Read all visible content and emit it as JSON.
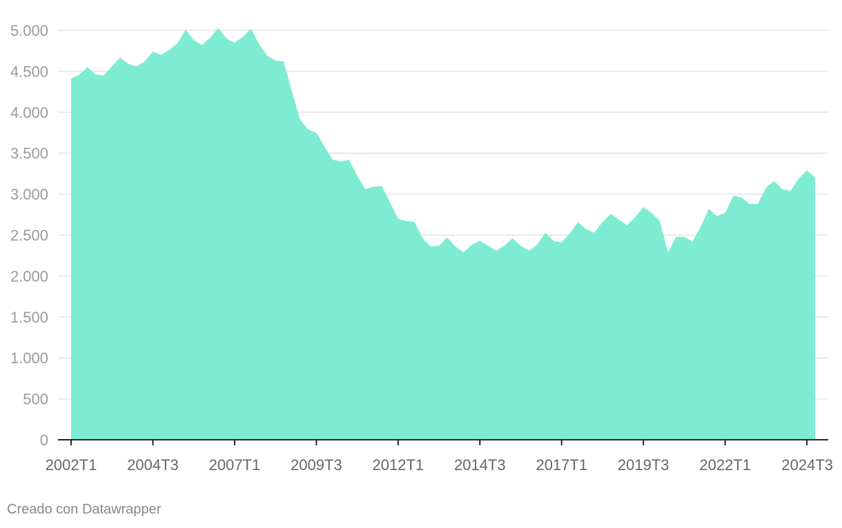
{
  "colors": {
    "area": "#7eecd3",
    "grid": "#e3e3e3",
    "baseline": "#222222"
  },
  "chart_data": {
    "type": "area",
    "title": "",
    "xlabel": "",
    "ylabel": "",
    "ylim": [
      0,
      5000
    ],
    "grid": true,
    "y_ticks": [
      0,
      500,
      1000,
      1500,
      2000,
      2500,
      3000,
      3500,
      4000,
      4500,
      5000
    ],
    "y_tick_labels": [
      "0",
      "500",
      "1.000",
      "1.500",
      "2.000",
      "2.500",
      "3.000",
      "3.500",
      "4.000",
      "4.500",
      "5.000"
    ],
    "x_tick_labels": [
      "2002T1",
      "2004T3",
      "2007T1",
      "2009T3",
      "2012T1",
      "2014T3",
      "2017T1",
      "2019T3",
      "2022T1",
      "2024T3"
    ],
    "x_tick_indices": [
      0,
      10,
      20,
      30,
      40,
      50,
      60,
      70,
      80,
      90
    ],
    "x": [
      "2002T1",
      "2002T2",
      "2002T3",
      "2002T4",
      "2003T1",
      "2003T2",
      "2003T3",
      "2003T4",
      "2004T1",
      "2004T2",
      "2004T3",
      "2004T4",
      "2005T1",
      "2005T2",
      "2005T3",
      "2005T4",
      "2006T1",
      "2006T2",
      "2006T3",
      "2006T4",
      "2007T1",
      "2007T2",
      "2007T3",
      "2007T4",
      "2008T1",
      "2008T2",
      "2008T3",
      "2008T4",
      "2009T1",
      "2009T2",
      "2009T3",
      "2009T4",
      "2010T1",
      "2010T2",
      "2010T3",
      "2010T4",
      "2011T1",
      "2011T2",
      "2011T3",
      "2011T4",
      "2012T1",
      "2012T2",
      "2012T3",
      "2012T4",
      "2013T1",
      "2013T2",
      "2013T3",
      "2013T4",
      "2014T1",
      "2014T2",
      "2014T3",
      "2014T4",
      "2015T1",
      "2015T2",
      "2015T3",
      "2015T4",
      "2016T1",
      "2016T2",
      "2016T3",
      "2016T4",
      "2017T1",
      "2017T2",
      "2017T3",
      "2017T4",
      "2018T1",
      "2018T2",
      "2018T3",
      "2018T4",
      "2019T1",
      "2019T2",
      "2019T3",
      "2019T4",
      "2020T1",
      "2020T2",
      "2020T3",
      "2020T4",
      "2021T1",
      "2021T2",
      "2021T3",
      "2021T4",
      "2022T1",
      "2022T2",
      "2022T3",
      "2022T4",
      "2023T1",
      "2023T2",
      "2023T3",
      "2023T4",
      "2024T1",
      "2024T2",
      "2024T3",
      "2024T4"
    ],
    "values": [
      4410,
      4460,
      4550,
      4460,
      4450,
      4560,
      4670,
      4590,
      4560,
      4620,
      4740,
      4700,
      4760,
      4840,
      5010,
      4880,
      4820,
      4910,
      5030,
      4900,
      4850,
      4920,
      5020,
      4830,
      4690,
      4630,
      4620,
      4260,
      3910,
      3790,
      3750,
      3580,
      3420,
      3400,
      3420,
      3220,
      3060,
      3090,
      3100,
      2900,
      2700,
      2670,
      2660,
      2460,
      2360,
      2370,
      2470,
      2360,
      2290,
      2380,
      2430,
      2370,
      2310,
      2370,
      2460,
      2370,
      2310,
      2380,
      2530,
      2430,
      2410,
      2520,
      2660,
      2570,
      2530,
      2660,
      2760,
      2690,
      2620,
      2720,
      2840,
      2770,
      2670,
      2290,
      2480,
      2480,
      2420,
      2600,
      2820,
      2730,
      2770,
      2980,
      2960,
      2880,
      2880,
      3080,
      3160,
      3060,
      3040,
      3190,
      3290,
      3200
    ]
  },
  "footer": {
    "credit": "Creado con Datawrapper"
  }
}
